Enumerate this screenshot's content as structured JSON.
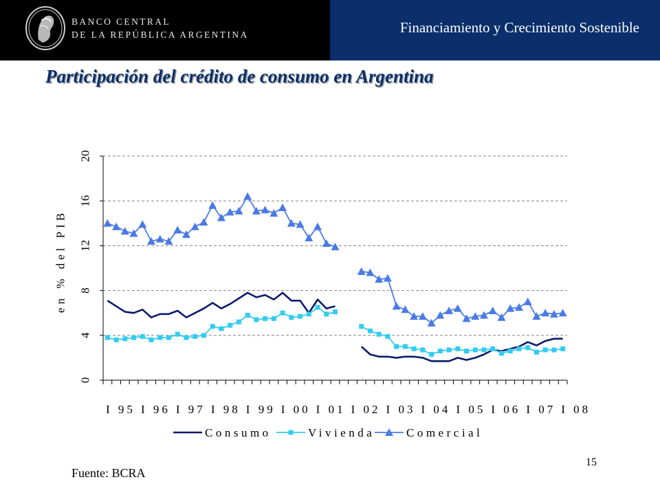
{
  "header": {
    "bank_line1": "BANCO CENTRAL",
    "bank_line2": "DE LA REPÚBLICA ARGENTINA",
    "section_title": "Financiamiento y Crecimiento Sostenible"
  },
  "slide": {
    "title": "Participación del crédito de consumo en Argentina",
    "source": "Fuente: BCRA",
    "page_number": "15"
  },
  "colors": {
    "header_dark": "#000000",
    "header_blue": "#0a2f6b",
    "consumo": "#0a1a6a",
    "vivienda": "#33ccf0",
    "comercial": "#4a7ae6"
  },
  "chart_data": {
    "type": "line",
    "title": "",
    "xlabel": "",
    "ylabel": "en % del PIB",
    "ylim": [
      0,
      20
    ],
    "yticks": [
      "0",
      "4",
      "8",
      "12",
      "16",
      "20"
    ],
    "xtick_labels": [
      "I 95",
      "I 96",
      "I 97",
      "I 98",
      "I 99",
      "I 00",
      "I 01",
      "I 02",
      "I 03",
      "I 04",
      "I 05",
      "I 06",
      "I 07",
      "I 08"
    ],
    "x": [
      "I 95",
      "II 95",
      "III 95",
      "IV 95",
      "I 96",
      "II 96",
      "III 96",
      "IV 96",
      "I 97",
      "II 97",
      "III 97",
      "IV 97",
      "I 98",
      "II 98",
      "III 98",
      "IV 98",
      "I 99",
      "II 99",
      "III 99",
      "IV 99",
      "I 00",
      "II 00",
      "III 00",
      "IV 00",
      "I 01",
      "II 01",
      "III 01",
      "IV 01",
      "I 02",
      "II 02",
      "III 02",
      "IV 02",
      "I 03",
      "II 03",
      "III 03",
      "IV 03",
      "I 04",
      "II 04",
      "III 04",
      "IV 04",
      "I 05",
      "II 05",
      "III 05",
      "IV 05",
      "I 06",
      "II 06",
      "III 06",
      "IV 06",
      "I 07",
      "II 07",
      "III 07",
      "IV 07",
      "I 08"
    ],
    "grid": "horizontal dashed",
    "legend_position": "bottom",
    "series": [
      {
        "name": "Consumo",
        "marker": "none",
        "values": [
          7.1,
          6.6,
          6.1,
          6.0,
          6.3,
          5.6,
          5.9,
          5.9,
          6.2,
          5.6,
          6.0,
          6.4,
          6.9,
          6.4,
          6.8,
          7.3,
          7.8,
          7.4,
          7.6,
          7.2,
          7.8,
          7.1,
          7.1,
          6.0,
          7.2,
          6.4,
          6.6,
          null,
          null,
          3.0,
          2.3,
          2.1,
          2.1,
          2.0,
          2.1,
          2.1,
          2.0,
          1.7,
          1.7,
          1.7,
          2.0,
          1.8,
          2.0,
          2.3,
          2.7,
          2.6,
          2.8,
          3.0,
          3.4,
          3.1,
          3.5,
          3.7,
          3.7
        ]
      },
      {
        "name": "Vivienda",
        "marker": "square",
        "values": [
          3.8,
          3.6,
          3.7,
          3.8,
          3.9,
          3.6,
          3.8,
          3.8,
          4.1,
          3.8,
          3.9,
          4.0,
          4.8,
          4.6,
          4.9,
          5.2,
          5.8,
          5.4,
          5.5,
          5.5,
          6.0,
          5.6,
          5.7,
          5.9,
          6.5,
          5.9,
          6.1,
          null,
          null,
          4.8,
          4.4,
          4.1,
          3.9,
          3.0,
          3.0,
          2.8,
          2.7,
          2.3,
          2.6,
          2.7,
          2.8,
          2.6,
          2.7,
          2.7,
          2.8,
          2.4,
          2.6,
          2.8,
          2.9,
          2.5,
          2.7,
          2.7,
          2.8
        ]
      },
      {
        "name": "Comercial",
        "marker": "triangle",
        "values": [
          14.0,
          13.7,
          13.3,
          13.1,
          13.9,
          12.4,
          12.6,
          12.4,
          13.4,
          13.0,
          13.7,
          14.1,
          15.6,
          14.5,
          15.0,
          15.1,
          16.4,
          15.1,
          15.2,
          14.9,
          15.4,
          14.0,
          13.9,
          12.7,
          13.7,
          12.2,
          11.9,
          null,
          null,
          9.7,
          9.6,
          9.0,
          9.1,
          6.6,
          6.3,
          5.7,
          5.7,
          5.1,
          5.8,
          6.2,
          6.4,
          5.5,
          5.7,
          5.8,
          6.2,
          5.6,
          6.4,
          6.5,
          7.0,
          5.7,
          6.0,
          5.9,
          6.0
        ]
      }
    ]
  }
}
